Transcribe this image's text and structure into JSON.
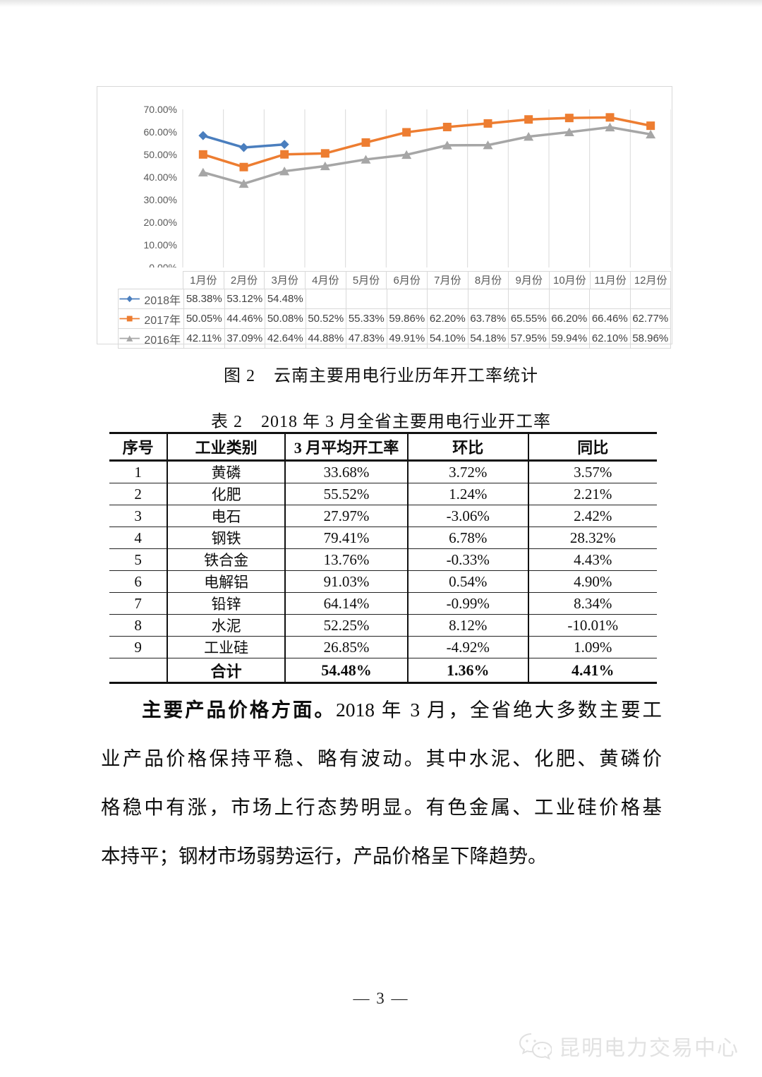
{
  "figure_caption": {
    "label": "图 2",
    "title": "云南主要用电行业历年开工率统计"
  },
  "table_caption": {
    "label": "表 2",
    "title": "2018 年 3 月全省主要用电行业开工率"
  },
  "chart_data": {
    "type": "line",
    "categories": [
      "1月份",
      "2月份",
      "3月份",
      "4月份",
      "5月份",
      "6月份",
      "7月份",
      "8月份",
      "9月份",
      "10月份",
      "11月份",
      "12月份"
    ],
    "ylim": [
      0,
      70
    ],
    "y_tick_step": 10,
    "y_tick_suffix": "%",
    "grid": "vertical-only",
    "legend_position": "data-table-bottom",
    "colors": {
      "gridline": "#d9d9d9",
      "axis_text": "#595959"
    },
    "series": [
      {
        "name": "2018年",
        "color": "#4A7EBE",
        "marker": "diamond",
        "values": [
          58.38,
          53.12,
          54.48,
          null,
          null,
          null,
          null,
          null,
          null,
          null,
          null,
          null
        ]
      },
      {
        "name": "2017年",
        "color": "#ED7D31",
        "marker": "square",
        "values": [
          50.05,
          44.46,
          50.08,
          50.52,
          55.33,
          59.86,
          62.2,
          63.78,
          65.55,
          66.2,
          66.46,
          62.77
        ]
      },
      {
        "name": "2016年",
        "color": "#A6A6A6",
        "marker": "triangle",
        "values": [
          42.11,
          37.09,
          42.64,
          44.88,
          47.83,
          49.91,
          54.1,
          54.18,
          57.95,
          59.94,
          62.1,
          58.96
        ]
      }
    ]
  },
  "main_table": {
    "headers": [
      "序号",
      "工业类别",
      "3 月平均开工率",
      "环比",
      "同比"
    ],
    "rows": [
      [
        "1",
        "黄磷",
        "33.68%",
        "3.72%",
        "3.57%"
      ],
      [
        "2",
        "化肥",
        "55.52%",
        "1.24%",
        "2.21%"
      ],
      [
        "3",
        "电石",
        "27.97%",
        "-3.06%",
        "2.42%"
      ],
      [
        "4",
        "钢铁",
        "79.41%",
        "6.78%",
        "28.32%"
      ],
      [
        "5",
        "铁合金",
        "13.76%",
        "-0.33%",
        "4.43%"
      ],
      [
        "6",
        "电解铝",
        "91.03%",
        "0.54%",
        "4.90%"
      ],
      [
        "7",
        "铅锌",
        "64.14%",
        "-0.99%",
        "8.34%"
      ],
      [
        "8",
        "水泥",
        "52.25%",
        "8.12%",
        "-10.01%"
      ],
      [
        "9",
        "工业硅",
        "26.85%",
        "-4.92%",
        "1.09%"
      ]
    ],
    "total_row": [
      "",
      "合计",
      "54.48%",
      "1.36%",
      "4.41%"
    ]
  },
  "paragraph": {
    "line1_lead": "主要产品价格方面。",
    "line1_rest": "2018 年 3 月，全省绝大多数主要工",
    "line2": "业产品价格保持平稳、略有波动。其中水泥、化肥、黄磷价",
    "line3": "格稳中有涨，市场上行态势明显。有色金属、工业硅价格基",
    "line4": "本持平；钢材市场弱势运行，产品价格呈下降趋势。"
  },
  "footer": {
    "page_number": "— 3 —"
  },
  "watermark": {
    "text": "昆明电力交易中心",
    "icon": "wechat-icon"
  }
}
